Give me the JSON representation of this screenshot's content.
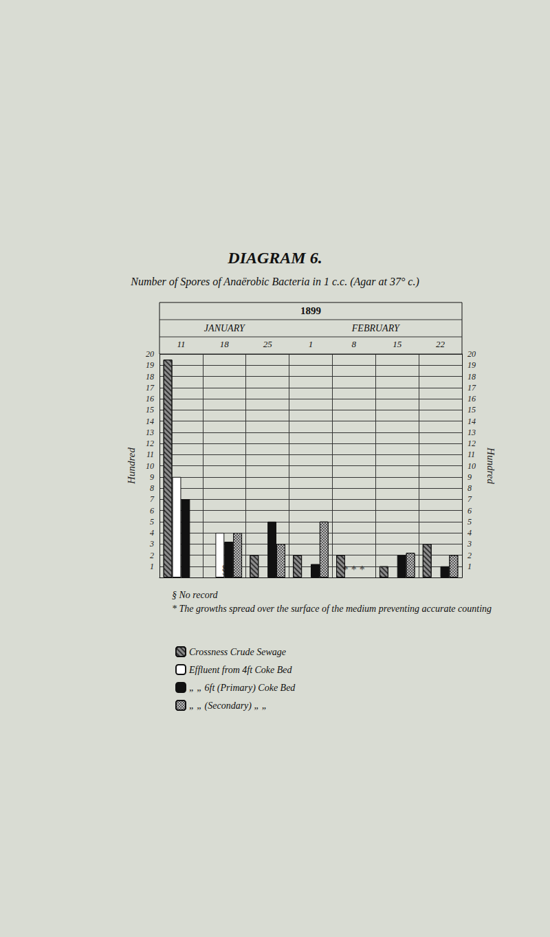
{
  "chart_data": {
    "type": "bar",
    "title": "DIAGRAM 6.",
    "subtitle": "Number of Spores of Anaërobic Bacteria in 1 c.c. (Agar at 37° c.)",
    "year": "1899",
    "months": [
      {
        "label": "JANUARY",
        "categories": [
          "11",
          "18",
          "25"
        ]
      },
      {
        "label": "FEBRUARY",
        "categories": [
          "1",
          "8",
          "15",
          "22"
        ]
      }
    ],
    "categories": [
      "11",
      "18",
      "25",
      "1",
      "8",
      "15",
      "22"
    ],
    "ylabel": "Hundred",
    "ylim": [
      0,
      20
    ],
    "yticks": [
      1,
      2,
      3,
      4,
      5,
      6,
      7,
      8,
      9,
      10,
      11,
      12,
      13,
      14,
      15,
      16,
      17,
      18,
      19,
      20
    ],
    "grid": true,
    "series": [
      {
        "name": "Crossness Crude Sewage",
        "color": "#8c8c8c",
        "values": [
          19.5,
          null,
          2,
          2,
          2,
          1,
          3
        ]
      },
      {
        "name": "Effluent from 4ft Coke Bed",
        "color": "#ffffff",
        "values": [
          9,
          4,
          null,
          null,
          null,
          null,
          null
        ]
      },
      {
        "name": "„ „ 6ft (Primary) Coke Bed",
        "color": "#111111",
        "values": [
          7,
          3.2,
          5,
          1.2,
          null,
          2,
          1
        ]
      },
      {
        "name": "„ „ (Secondary) „ „",
        "color": "#5a5a5a",
        "values": [
          null,
          4,
          3,
          5,
          null,
          2.2,
          2
        ]
      }
    ],
    "annotations": [
      {
        "category": "18",
        "text": "§"
      },
      {
        "category": "8",
        "text": "* * *"
      }
    ],
    "notes": [
      "§ No record",
      "* The growths spread over the surface of the medium preventing accurate counting"
    ]
  }
}
